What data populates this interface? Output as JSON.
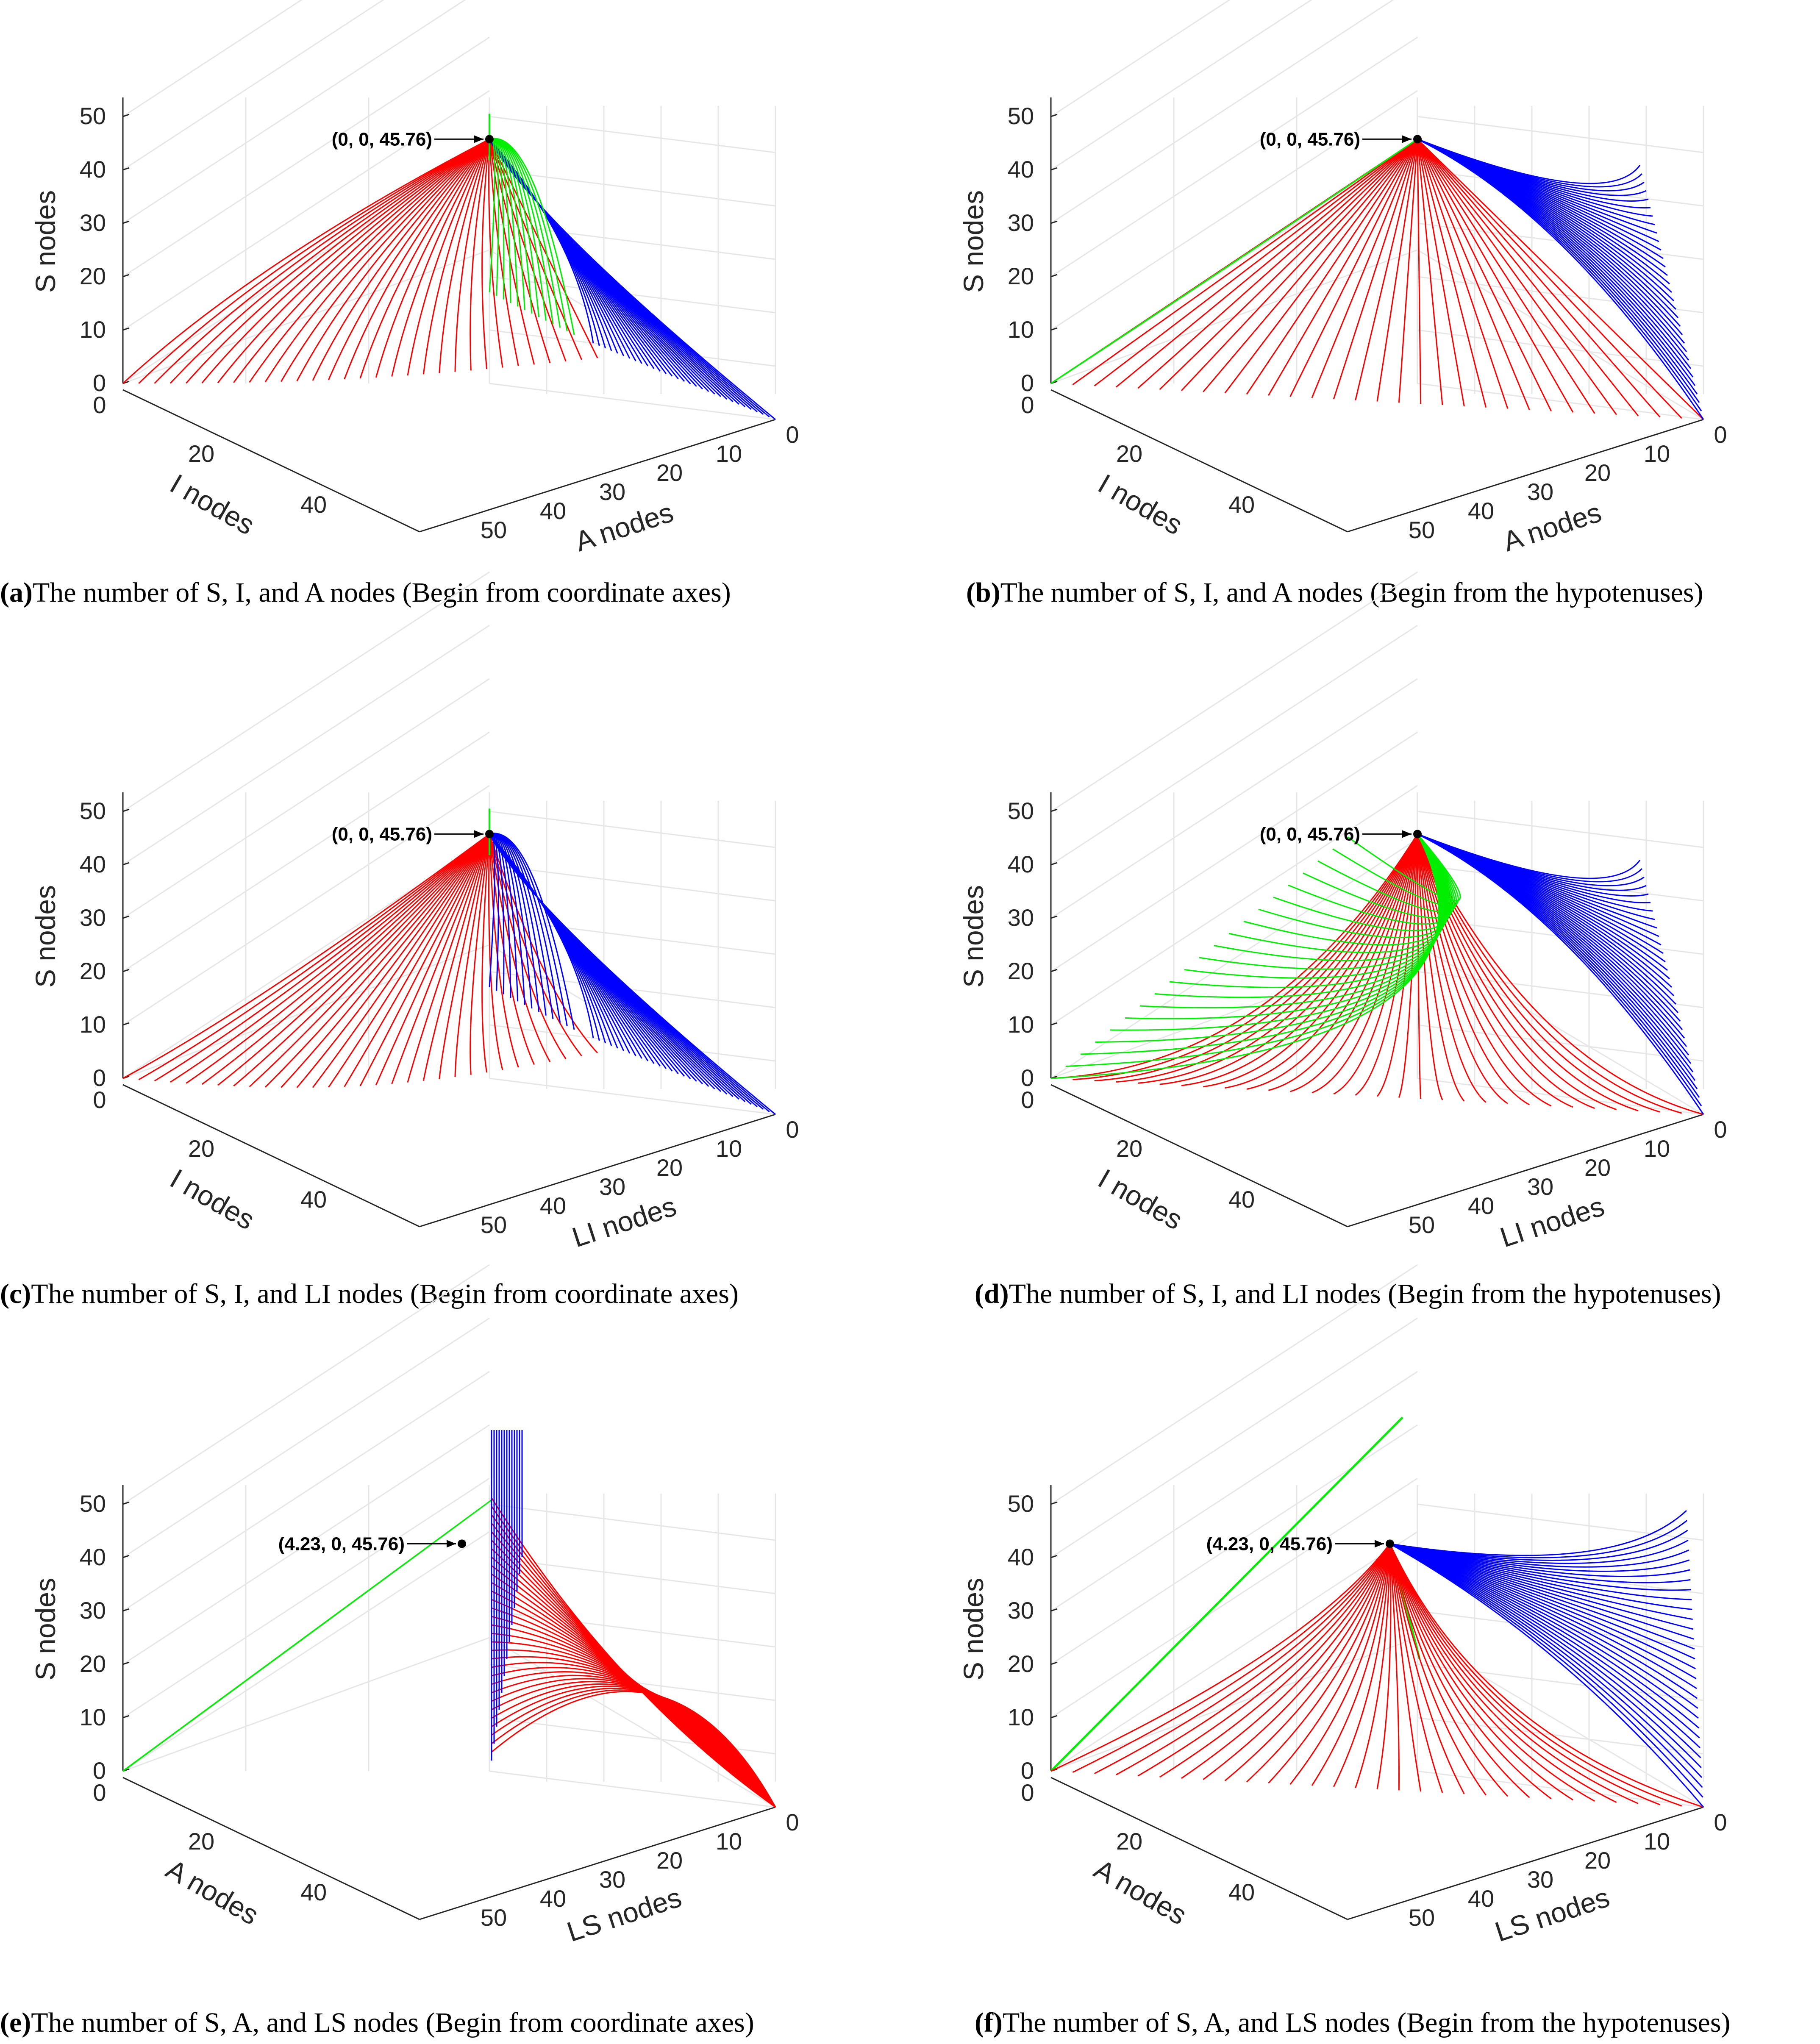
{
  "colors": {
    "red": "#ff0000",
    "green": "#00ee00",
    "blue": "#0000ff",
    "grid": "#e6e6e6",
    "axis": "#262626"
  },
  "chart_data": [
    {
      "type": "line",
      "panel": "a",
      "xlabel": "I nodes",
      "ylabel": "A nodes",
      "zlabel": "S nodes",
      "xticks": [
        "0",
        "20",
        "40"
      ],
      "yticks": [
        "0",
        "10",
        "20",
        "30",
        "40",
        "50"
      ],
      "zticks": [
        "0",
        "10",
        "20",
        "30",
        "40",
        "50"
      ],
      "xlim": [
        0,
        50
      ],
      "ylim": [
        0,
        50
      ],
      "zlim": [
        0,
        55
      ],
      "equilibrium": [
        0,
        0,
        45.76
      ],
      "annotation": "(0, 0, 45.76)",
      "series": [
        {
          "name": "red trajectories",
          "color": "red"
        },
        {
          "name": "green trajectories",
          "color": "green"
        },
        {
          "name": "blue trajectories",
          "color": "blue"
        }
      ],
      "caption_label": "(a)",
      "caption_text": "The number of S, I, and A nodes (Begin from coordinate axes)"
    },
    {
      "type": "line",
      "panel": "b",
      "xlabel": "I nodes",
      "ylabel": "A nodes",
      "zlabel": "S nodes",
      "xticks": [
        "0",
        "20",
        "40"
      ],
      "yticks": [
        "0",
        "10",
        "20",
        "30",
        "40",
        "50"
      ],
      "zticks": [
        "0",
        "10",
        "20",
        "30",
        "40",
        "50"
      ],
      "xlim": [
        0,
        50
      ],
      "ylim": [
        0,
        50
      ],
      "zlim": [
        0,
        55
      ],
      "equilibrium": [
        0,
        0,
        45.76
      ],
      "annotation": "(0, 0, 45.76)",
      "series": [
        {
          "name": "red trajectories",
          "color": "red"
        },
        {
          "name": "green trajectories",
          "color": "green"
        },
        {
          "name": "blue trajectories",
          "color": "blue"
        }
      ],
      "caption_label": "(b)",
      "caption_text": "The number of S, I, and A nodes (Begin from the hypotenuses)"
    },
    {
      "type": "line",
      "panel": "c",
      "xlabel": "I nodes",
      "ylabel": "LI nodes",
      "zlabel": "S nodes",
      "xticks": [
        "0",
        "20",
        "40"
      ],
      "yticks": [
        "0",
        "10",
        "20",
        "30",
        "40",
        "50"
      ],
      "zticks": [
        "0",
        "10",
        "20",
        "30",
        "40",
        "50"
      ],
      "xlim": [
        0,
        50
      ],
      "ylim": [
        0,
        50
      ],
      "zlim": [
        0,
        55
      ],
      "equilibrium": [
        0,
        0,
        45.76
      ],
      "annotation": "(0, 0, 45.76)",
      "series": [
        {
          "name": "red trajectories",
          "color": "red"
        },
        {
          "name": "green trajectories",
          "color": "green"
        },
        {
          "name": "blue trajectories",
          "color": "blue"
        }
      ],
      "caption_label": "(c)",
      "caption_text": "The number of S, I, and LI nodes (Begin from coordinate axes)"
    },
    {
      "type": "line",
      "panel": "d",
      "xlabel": "I nodes",
      "ylabel": "LI nodes",
      "zlabel": "S nodes",
      "xticks": [
        "0",
        "20",
        "40"
      ],
      "yticks": [
        "0",
        "10",
        "20",
        "30",
        "40",
        "50"
      ],
      "zticks": [
        "0",
        "10",
        "20",
        "30",
        "40",
        "50"
      ],
      "xlim": [
        0,
        50
      ],
      "ylim": [
        0,
        50
      ],
      "zlim": [
        0,
        55
      ],
      "equilibrium": [
        0,
        0,
        45.76
      ],
      "annotation": "(0, 0, 45.76)",
      "series": [
        {
          "name": "red trajectories",
          "color": "red"
        },
        {
          "name": "green trajectories",
          "color": "green"
        },
        {
          "name": "blue trajectories",
          "color": "blue"
        }
      ],
      "caption_label": "(d)",
      "caption_text": "The number of S, I, and LI nodes (Begin from the hypotenuses)"
    },
    {
      "type": "line",
      "panel": "e",
      "xlabel": "A nodes",
      "ylabel": "LS nodes",
      "zlabel": "S nodes",
      "xticks": [
        "0",
        "20",
        "40"
      ],
      "yticks": [
        "0",
        "10",
        "20",
        "30",
        "40",
        "50"
      ],
      "zticks": [
        "0",
        "10",
        "20",
        "30",
        "40",
        "50"
      ],
      "xlim": [
        0,
        50
      ],
      "ylim": [
        0,
        50
      ],
      "zlim": [
        0,
        55
      ],
      "equilibrium": [
        4.23,
        0,
        45.76
      ],
      "annotation": "(4.23, 0, 45.76)",
      "series": [
        {
          "name": "red trajectories",
          "color": "red"
        },
        {
          "name": "green trajectories",
          "color": "green"
        },
        {
          "name": "blue trajectories",
          "color": "blue"
        }
      ],
      "caption_label": "(e)",
      "caption_text": "The number of S, A, and LS nodes (Begin from coordinate axes)"
    },
    {
      "type": "line",
      "panel": "f",
      "xlabel": "A nodes",
      "ylabel": "LS nodes",
      "zlabel": "S nodes",
      "xticks": [
        "0",
        "20",
        "40"
      ],
      "yticks": [
        "0",
        "10",
        "20",
        "30",
        "40",
        "50"
      ],
      "zticks": [
        "0",
        "10",
        "20",
        "30",
        "40",
        "50"
      ],
      "xlim": [
        0,
        50
      ],
      "ylim": [
        0,
        50
      ],
      "zlim": [
        0,
        55
      ],
      "equilibrium": [
        4.23,
        0,
        45.76
      ],
      "annotation": "(4.23, 0, 45.76)",
      "series": [
        {
          "name": "red trajectories",
          "color": "red"
        },
        {
          "name": "green trajectories",
          "color": "green"
        },
        {
          "name": "blue trajectories",
          "color": "blue"
        }
      ],
      "caption_label": "(f)",
      "caption_text": "The number of S, A, and LS nodes (Begin from the hypotenuses)"
    }
  ]
}
